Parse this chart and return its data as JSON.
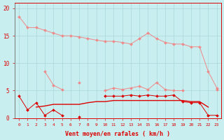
{
  "x": [
    0,
    1,
    2,
    3,
    4,
    5,
    6,
    7,
    8,
    9,
    10,
    11,
    12,
    13,
    14,
    15,
    16,
    17,
    18,
    19,
    20,
    21,
    22,
    23
  ],
  "line_top_pink": [
    18.5,
    16.5,
    16.5,
    16.0,
    15.5,
    15.0,
    15.0,
    14.8,
    14.5,
    14.2,
    14.0,
    14.0,
    13.8,
    13.5,
    14.5,
    15.5,
    14.5,
    13.8,
    13.5,
    13.5,
    13.0,
    13.0,
    8.5,
    5.5
  ],
  "line_mid_pink": [
    null,
    null,
    null,
    8.5,
    6.0,
    5.2,
    null,
    6.5,
    null,
    null,
    null,
    null,
    null,
    null,
    null,
    null,
    null,
    null,
    null,
    null,
    null,
    null,
    null,
    null
  ],
  "line_rafales_pink": [
    null,
    null,
    null,
    null,
    null,
    null,
    null,
    null,
    null,
    null,
    5.0,
    5.5,
    5.2,
    5.5,
    5.8,
    5.2,
    6.5,
    5.2,
    5.0,
    5.0,
    null,
    null,
    null,
    5.2
  ],
  "line_low_dark": [
    4.0,
    1.5,
    2.8,
    0.5,
    1.5,
    0.5,
    null,
    0.2,
    null,
    null,
    4.0,
    4.0,
    4.0,
    4.2,
    4.0,
    4.2,
    4.0,
    4.0,
    4.2,
    3.0,
    2.8,
    2.8,
    0.5,
    0.5
  ],
  "line_avg_dark": [
    null,
    null,
    2.0,
    2.2,
    2.5,
    2.5,
    2.5,
    2.5,
    2.8,
    3.0,
    3.0,
    3.2,
    3.2,
    3.2,
    3.2,
    3.2,
    3.2,
    3.2,
    3.2,
    3.2,
    3.0,
    3.0,
    2.0,
    null
  ],
  "line_min_dark": [
    0.0,
    0.0,
    0.0,
    0.0,
    0.0,
    0.0,
    0.0,
    0.0,
    0.0,
    0.0,
    0.0,
    0.0,
    0.0,
    0.0,
    0.0,
    0.0,
    0.0,
    0.0,
    0.0,
    0.0,
    0.0,
    0.0,
    0.0,
    0.0
  ],
  "line_extra_dark": [
    null,
    null,
    null,
    null,
    null,
    null,
    null,
    null,
    null,
    null,
    null,
    null,
    null,
    null,
    null,
    null,
    null,
    null,
    null,
    null,
    3.2,
    3.0,
    null,
    null
  ],
  "bg_color": "#c8eef0",
  "grid_color": "#aad8da",
  "color_light": "#f08888",
  "color_dark": "#dd0000",
  "xlabel": "Vent moyen/en rafales ( km/h )",
  "ylim": [
    0,
    21
  ],
  "xlim": [
    -0.5,
    23.5
  ],
  "yticks": [
    0,
    5,
    10,
    15,
    20
  ],
  "xticks": [
    0,
    1,
    2,
    3,
    4,
    5,
    6,
    7,
    8,
    9,
    10,
    11,
    12,
    13,
    14,
    15,
    16,
    17,
    18,
    19,
    20,
    21,
    22,
    23
  ]
}
